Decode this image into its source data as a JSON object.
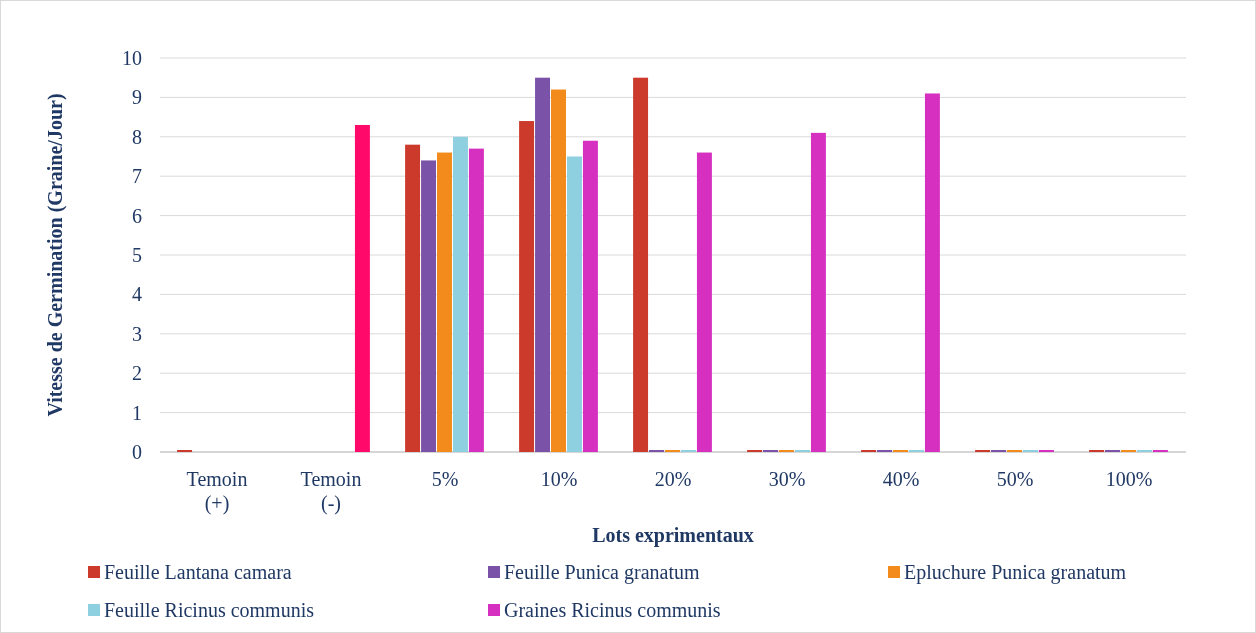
{
  "chart_data": {
    "type": "bar",
    "xlabel": "Lots exprimentaux",
    "ylabel": "Vitesse de Germination (Graine/Jour)",
    "categories": [
      "Temoin (+)",
      "Temoin (-)",
      "5%",
      "10%",
      "20%",
      "30%",
      "40%",
      "50%",
      "100%"
    ],
    "ylim": [
      0,
      10
    ],
    "yticks": [
      0,
      1,
      2,
      3,
      4,
      5,
      6,
      7,
      8,
      9,
      10
    ],
    "grid": "y",
    "legend": "bottom",
    "series": [
      {
        "name": "Feuille  Lantana camara",
        "color": "#cc3a2c",
        "values": [
          0,
          null,
          7.8,
          8.4,
          9.5,
          0,
          0,
          0,
          0
        ]
      },
      {
        "name": "Feuille Punica granatum",
        "color": "#7a52a8",
        "values": [
          null,
          null,
          7.4,
          9.5,
          0,
          0,
          0,
          0,
          0
        ]
      },
      {
        "name": "Epluchure Punica granatum",
        "color": "#f28a1c",
        "values": [
          null,
          null,
          7.6,
          9.2,
          0,
          0,
          0,
          0,
          0
        ]
      },
      {
        "name": "Feuille Ricinus communis",
        "color": "#8ecfe0",
        "values": [
          null,
          null,
          8.0,
          7.5,
          0,
          0,
          0,
          0,
          0
        ]
      },
      {
        "name": "Graines Ricinus communis",
        "color": "#d630c0",
        "colors": [
          null,
          "#ff0a6a",
          "#d630c0",
          "#d630c0",
          "#d630c0",
          "#d630c0",
          "#d630c0",
          "#d630c0",
          "#d630c0"
        ],
        "values": [
          null,
          8.3,
          7.7,
          7.9,
          7.6,
          8.1,
          9.1,
          0,
          0
        ]
      }
    ]
  }
}
